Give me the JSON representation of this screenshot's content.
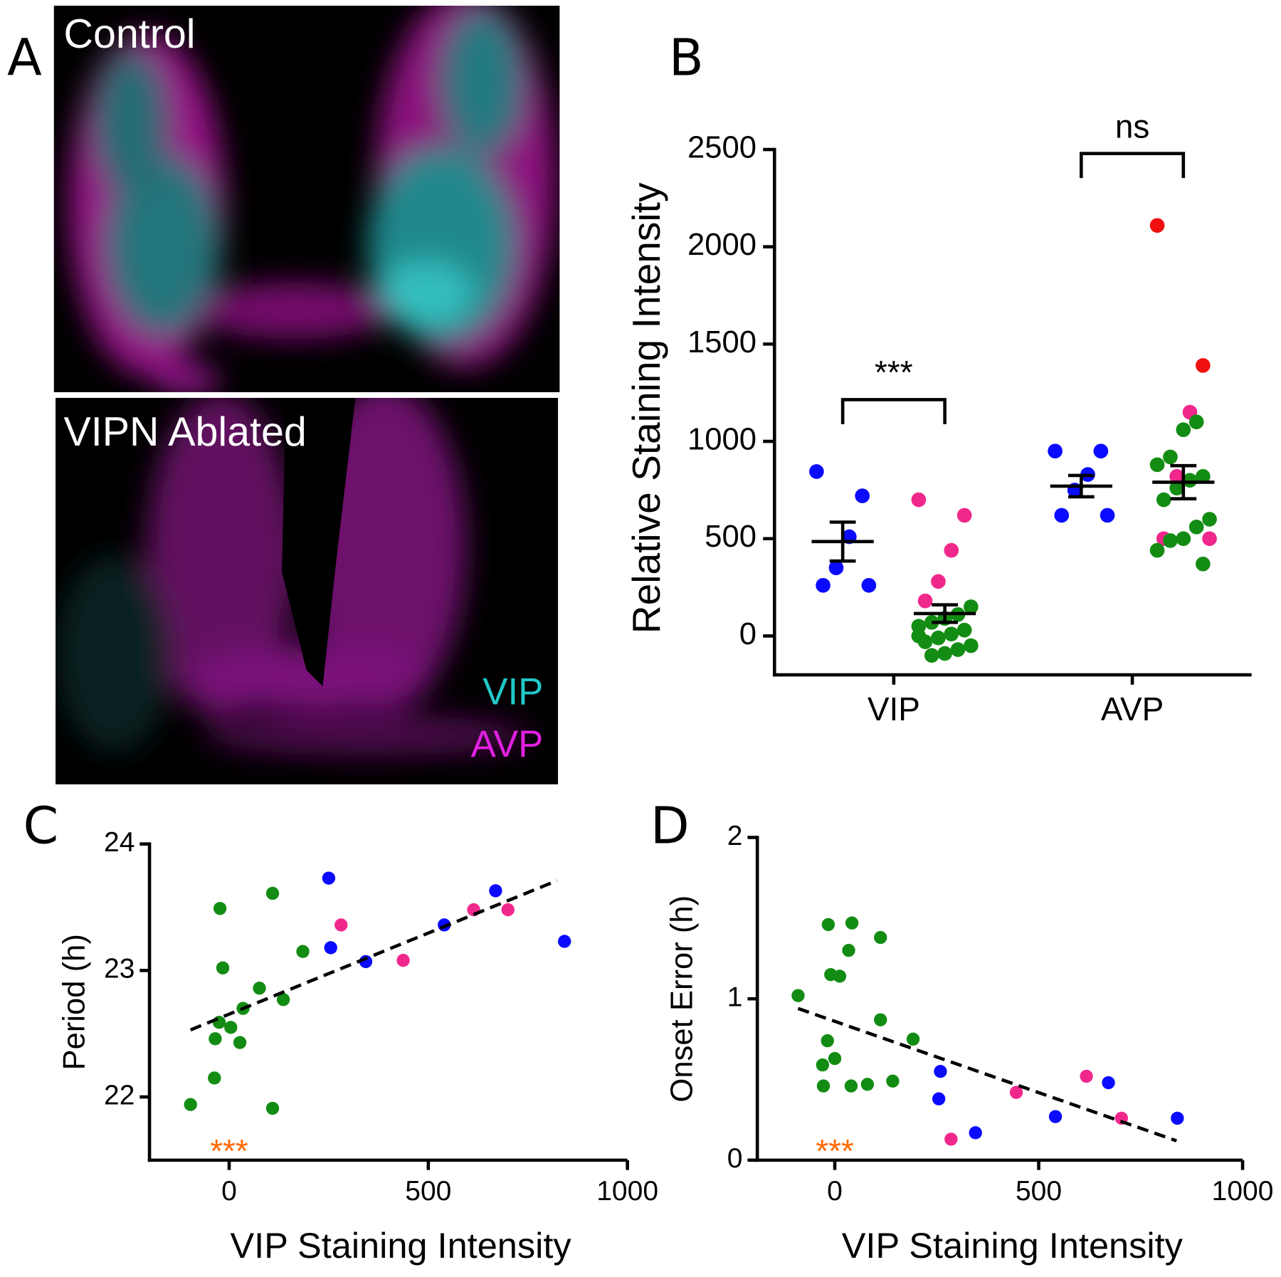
{
  "panel_a": {
    "label": "A",
    "top_caption": "Control",
    "bottom_caption": "VIPN Ablated",
    "channels": [
      {
        "name": "VIP",
        "color": "#22c8c8"
      },
      {
        "name": "AVP",
        "color": "#e020e0"
      }
    ]
  },
  "chart_data": [
    {
      "type": "dotplot",
      "panel_label": "B",
      "ylabel": "Relative Staining Intensity",
      "categories": [
        "VIP",
        "AVP"
      ],
      "ylim": [
        -200,
        2500
      ],
      "yticks": [
        0,
        500,
        1000,
        1500,
        2000,
        2500
      ],
      "significance": [
        "***",
        "ns"
      ],
      "series": [
        {
          "values": [
            [
              845,
              720,
              510,
              350,
              260,
              260
            ],
            [
              950,
              950,
              830,
              750,
              620,
              620
            ]
          ],
          "colors": [
            [
              "#0a0aff",
              "#0a0aff",
              "#0a0aff",
              "#0a0aff",
              "#0a0aff",
              "#0a0aff"
            ],
            [
              "#0a0aff",
              "#0a0aff",
              "#0a0aff",
              "#0a0aff",
              "#0a0aff",
              "#0a0aff"
            ]
          ],
          "means": [
            485,
            770
          ],
          "sems": [
            100,
            55
          ]
        },
        {
          "values": [
            [
              700,
              620,
              440,
              280,
              180,
              150,
              110,
              90,
              70,
              50,
              30,
              10,
              -10,
              -30,
              -50,
              -70,
              -90,
              -100,
              0
            ],
            [
              2110,
              1390,
              1150,
              820,
              500,
              500,
              1100,
              1060,
              920,
              880,
              820,
              800,
              760,
              700,
              600,
              560,
              500,
              490,
              440,
              370
            ]
          ],
          "colors": [
            [
              "#f0288c",
              "#f0288c",
              "#f0288c",
              "#f0288c",
              "#f0288c",
              "#138c13",
              "#138c13",
              "#138c13",
              "#138c13",
              "#138c13",
              "#138c13",
              "#138c13",
              "#138c13",
              "#138c13",
              "#138c13",
              "#138c13",
              "#138c13",
              "#138c13",
              "#138c13"
            ],
            [
              "#f01010",
              "#f01010",
              "#f0288c",
              "#f0288c",
              "#f0288c",
              "#f0288c",
              "#138c13",
              "#138c13",
              "#138c13",
              "#138c13",
              "#138c13",
              "#138c13",
              "#138c13",
              "#138c13",
              "#138c13",
              "#138c13",
              "#138c13",
              "#138c13",
              "#138c13",
              "#138c13"
            ]
          ],
          "means": [
            115,
            790
          ],
          "sems": [
            45,
            85
          ]
        }
      ]
    },
    {
      "type": "scatter",
      "panel_label": "C",
      "xlabel": "VIP Staining Intensity",
      "ylabel": "Period (h)",
      "xlim": [
        -200,
        1000
      ],
      "ylim": [
        21.5,
        24
      ],
      "xticks": [
        0,
        500,
        1000
      ],
      "yticks": [
        22,
        23,
        24
      ],
      "annotation": {
        "text": "***",
        "x": 0,
        "color": "#ff6a00"
      },
      "trend": {
        "x": [
          -97,
          823
        ],
        "y": [
          22.53,
          23.71
        ]
      },
      "series": [
        {
          "color": "#138c13",
          "x": [
            -97,
            -23,
            -16,
            -25,
            -35,
            -37,
            4,
            27,
            35,
            76,
            109,
            109,
            136,
            185
          ],
          "y": [
            21.94,
            23.49,
            23.02,
            22.59,
            22.46,
            22.15,
            22.55,
            22.43,
            22.7,
            22.86,
            23.61,
            21.91,
            22.77,
            23.15
          ]
        },
        {
          "color": "#0a0aff",
          "x": [
            250,
            255,
            343,
            540,
            669,
            842
          ],
          "y": [
            23.73,
            23.18,
            23.07,
            23.36,
            23.63,
            23.23
          ]
        },
        {
          "color": "#f0288c",
          "x": [
            281,
            437,
            614,
            700
          ],
          "y": [
            23.36,
            23.08,
            23.48,
            23.48
          ]
        }
      ]
    },
    {
      "type": "scatter",
      "panel_label": "D",
      "xlabel": "VIP Staining Intensity",
      "ylabel": "Onset Error (h)",
      "xlim": [
        -190,
        1000
      ],
      "ylim": [
        0,
        2
      ],
      "xticks": [
        0,
        500,
        1000
      ],
      "yticks": [
        0,
        1,
        2
      ],
      "annotation": {
        "text": "***",
        "x": 0,
        "color": "#ff6a00"
      },
      "trend": {
        "x": [
          -90,
          838
        ],
        "y": [
          0.94,
          0.12
        ]
      },
      "series": [
        {
          "color": "#138c13",
          "x": [
            -90,
            -16,
            42,
            34,
            -10,
            12,
            112,
            112,
            -18,
            0,
            -30,
            -28,
            40,
            80,
            142,
            192
          ],
          "y": [
            1.02,
            1.46,
            1.47,
            1.3,
            1.15,
            1.14,
            1.38,
            0.87,
            0.74,
            0.63,
            0.59,
            0.46,
            0.46,
            0.47,
            0.49,
            0.75
          ]
        },
        {
          "color": "#0a0aff",
          "x": [
            259,
            255,
            345,
            541,
            671,
            840
          ],
          "y": [
            0.55,
            0.38,
            0.17,
            0.27,
            0.48,
            0.26
          ]
        },
        {
          "color": "#f0288c",
          "x": [
            285,
            445,
            617,
            703
          ],
          "y": [
            0.13,
            0.42,
            0.52,
            0.26
          ]
        }
      ]
    }
  ]
}
